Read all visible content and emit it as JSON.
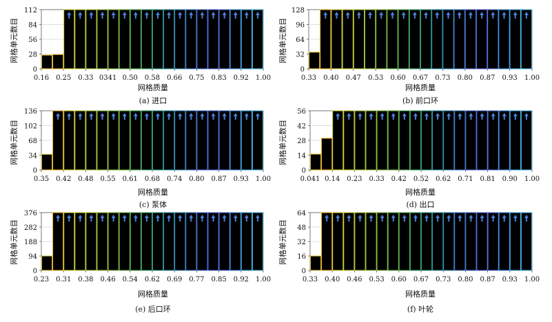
{
  "xlabel": "网格质量",
  "ylabel": "网格单元数目",
  "chart_data": [
    {
      "type": "bar",
      "caption": "(a) 进口",
      "x_ticks": [
        "0.16",
        "0.25",
        "0.33",
        "0341",
        "0.50",
        "0.58",
        "0.66",
        "0.75",
        "0.83",
        "0.92",
        "1.00"
      ],
      "y_ticks": [
        "0",
        "28",
        "56",
        "84",
        "112"
      ],
      "ylim": [
        0,
        112
      ],
      "values": [
        26,
        27,
        112,
        112,
        112,
        112,
        112,
        112,
        112,
        112,
        112,
        112,
        112,
        112,
        112,
        112,
        112,
        112,
        112,
        112
      ],
      "overflow_from": 2
    },
    {
      "type": "bar",
      "caption": "(b) 前口环",
      "x_ticks": [
        "0.33",
        "0.40",
        "0.47",
        "0.53",
        "0.60",
        "0.67",
        "0.73",
        "0.80",
        "0.87",
        "0.93",
        "1.00"
      ],
      "y_ticks": [
        "0",
        "32",
        "64",
        "96",
        "128"
      ],
      "ylim": [
        0,
        128
      ],
      "values": [
        36,
        128,
        128,
        128,
        128,
        128,
        128,
        128,
        128,
        128,
        128,
        128,
        128,
        128,
        128,
        128,
        128,
        128,
        128,
        128
      ],
      "overflow_from": 1
    },
    {
      "type": "bar",
      "caption": "(c) 泵体",
      "x_ticks": [
        "0.35",
        "0.42",
        "0.48",
        "0.55",
        "0.61",
        "0.68",
        "0.74",
        "0.80",
        "0.87",
        "0.93",
        "1.00"
      ],
      "y_ticks": [
        "0",
        "34",
        "68",
        "102",
        "136"
      ],
      "ylim": [
        0,
        136
      ],
      "values": [
        36,
        136,
        136,
        136,
        136,
        136,
        136,
        136,
        136,
        136,
        136,
        136,
        136,
        136,
        136,
        136,
        136,
        136,
        136,
        136
      ],
      "overflow_from": 1
    },
    {
      "type": "bar",
      "caption": "(d) 出口",
      "x_ticks": [
        "0.041",
        "0.14",
        "0.23",
        "0.33",
        "0.42",
        "0.52",
        "0.62",
        "0.71",
        "0.81",
        "0.90",
        "1.00"
      ],
      "y_ticks": [
        "0",
        "14",
        "28",
        "42",
        "56"
      ],
      "ylim": [
        0,
        56
      ],
      "values": [
        15,
        30,
        56,
        56,
        56,
        56,
        56,
        56,
        56,
        56,
        56,
        56,
        56,
        56,
        56,
        56,
        56,
        56,
        56,
        56
      ],
      "overflow_from": 2
    },
    {
      "type": "bar",
      "caption": "(e) 后口环",
      "x_ticks": [
        "0.23",
        "0.31",
        "0.38",
        "0.46",
        "0.54",
        "0.62",
        "0.69",
        "0.77",
        "0.85",
        "0.92",
        "1.00"
      ],
      "y_ticks": [
        "0",
        "94",
        "188",
        "282",
        "376"
      ],
      "ylim": [
        0,
        376
      ],
      "values": [
        94,
        376,
        376,
        376,
        376,
        376,
        376,
        376,
        376,
        376,
        376,
        376,
        376,
        376,
        376,
        376,
        376,
        376,
        376,
        376
      ],
      "overflow_from": 1
    },
    {
      "type": "bar",
      "caption": "(f) 叶轮",
      "x_ticks": [
        "0.33",
        "0.40",
        "0.46",
        "0.53",
        "0.60",
        "0.67",
        "0.73",
        "0.80",
        "0.87",
        "0.93",
        "1.00"
      ],
      "y_ticks": [
        "0",
        "16",
        "32",
        "48",
        "64"
      ],
      "ylim": [
        0,
        64
      ],
      "values": [
        16,
        64,
        64,
        64,
        64,
        64,
        64,
        64,
        64,
        64,
        64,
        64,
        64,
        64,
        64,
        64,
        64,
        64,
        64,
        64
      ],
      "overflow_from": 1
    }
  ],
  "colors": {
    "bar_fill": "#000000",
    "arrow": "#4a7fd8",
    "grid": "#d4d4d4",
    "axis": "#555555",
    "palette": [
      "#e5c63a",
      "#f0b32a",
      "#d8d23a",
      "#c9cf38",
      "#b4c93a",
      "#9cc33c",
      "#83bc3e",
      "#6ab542",
      "#4fae4f",
      "#3aa76a",
      "#2f9e88",
      "#2b94a4",
      "#3288bb",
      "#3f7ccd",
      "#4a71d6",
      "#5567dc",
      "#4f78de",
      "#3b91e0",
      "#3aa7e2",
      "#49b9e8"
    ]
  }
}
